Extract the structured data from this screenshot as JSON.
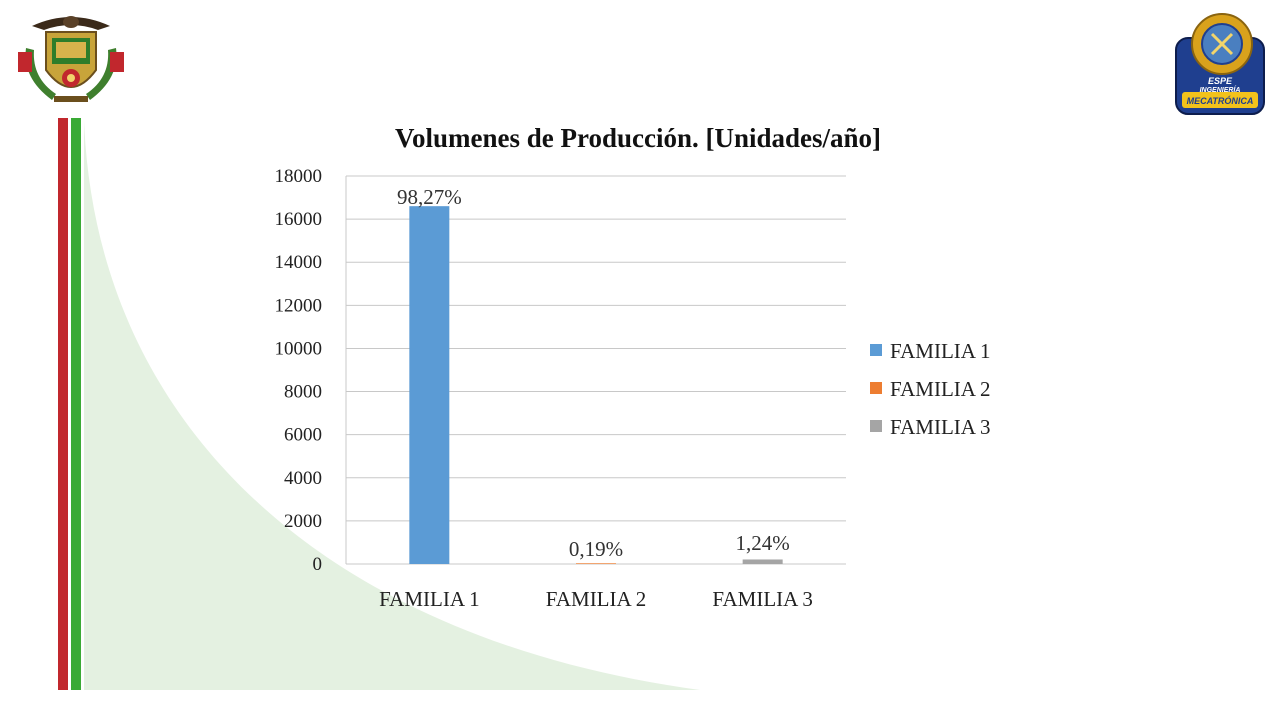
{
  "slide": {
    "left_logo": {
      "name": "university-coat-of-arms"
    },
    "right_logo": {
      "name": "espe-mecatronica-logo",
      "lines": [
        "ESPE",
        "INGENIERÍA",
        "MECATRÓNICA"
      ]
    },
    "colors": {
      "red_stripe": "#c1272d",
      "green_stripe": "#3aaa35",
      "green_bg": "#e4f1e1"
    }
  },
  "chart_data": {
    "type": "bar",
    "title": "Volumenes de Producción. [Unidades/año]",
    "categories": [
      "FAMILIA 1",
      "FAMILIA 2",
      "FAMILIA 3"
    ],
    "series": [
      {
        "name": "FAMILIA 1",
        "color": "#5b9bd5",
        "values": [
          16600,
          0,
          0
        ]
      },
      {
        "name": "FAMILIA 2",
        "color": "#ed7d31",
        "values": [
          0,
          32,
          0
        ]
      },
      {
        "name": "FAMILIA 3",
        "color": "#a5a5a5",
        "values": [
          0,
          0,
          210
        ]
      }
    ],
    "data_labels": [
      "98,27%",
      "0,19%",
      "1,24%"
    ],
    "ylim": [
      0,
      18000
    ],
    "yticks": [
      0,
      2000,
      4000,
      6000,
      8000,
      10000,
      12000,
      14000,
      16000,
      18000
    ],
    "grid": true,
    "legend_position": "right"
  }
}
